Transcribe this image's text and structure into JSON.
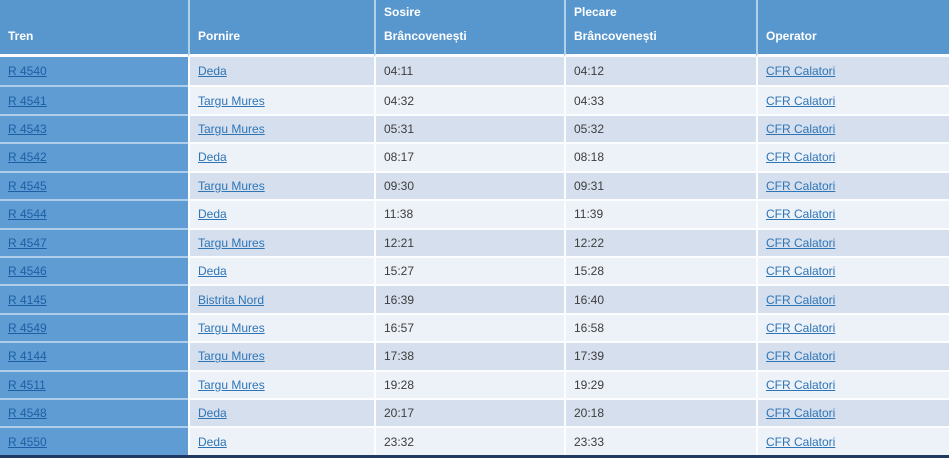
{
  "colors": {
    "header_bg": "#5897CE",
    "first_col_bg": "#5F9CD3",
    "row_odd_bg": "#D5DFEE",
    "row_even_bg": "#EDF1F8",
    "link_color": "#2E75B6",
    "first_col_link_color": "#1D5FA5",
    "time_text_color": "#3D3D3D",
    "bottom_border_color": "#1F3864",
    "header_text_color": "#FFFFFF"
  },
  "table": {
    "headers": [
      {
        "id": "tren",
        "lines": [
          "Tren"
        ]
      },
      {
        "id": "pornire",
        "lines": [
          "Pornire"
        ]
      },
      {
        "id": "sosire",
        "lines": [
          "Sosire",
          "Brâncovenești"
        ]
      },
      {
        "id": "plecare",
        "lines": [
          "Plecare",
          "Brâncovenești"
        ]
      },
      {
        "id": "operator",
        "lines": [
          "Operator"
        ]
      }
    ],
    "rows": [
      {
        "tren": "R 4540",
        "pornire": "Deda",
        "sosire": "04:11",
        "plecare": "04:12",
        "operator": "CFR Calatori"
      },
      {
        "tren": "R 4541",
        "pornire": "Targu Mures",
        "sosire": "04:32",
        "plecare": "04:33",
        "operator": "CFR Calatori"
      },
      {
        "tren": "R 4543",
        "pornire": "Targu Mures",
        "sosire": "05:31",
        "plecare": "05:32",
        "operator": "CFR Calatori"
      },
      {
        "tren": "R 4542",
        "pornire": "Deda",
        "sosire": "08:17",
        "plecare": "08:18",
        "operator": "CFR Calatori"
      },
      {
        "tren": "R 4545",
        "pornire": "Targu Mures",
        "sosire": "09:30",
        "plecare": "09:31",
        "operator": "CFR Calatori"
      },
      {
        "tren": "R 4544",
        "pornire": "Deda",
        "sosire": "11:38",
        "plecare": "11:39",
        "operator": "CFR Calatori"
      },
      {
        "tren": "R 4547",
        "pornire": "Targu Mures",
        "sosire": "12:21",
        "plecare": "12:22",
        "operator": "CFR Calatori"
      },
      {
        "tren": "R 4546",
        "pornire": "Deda",
        "sosire": "15:27",
        "plecare": "15:28",
        "operator": "CFR Calatori"
      },
      {
        "tren": "R 4145",
        "pornire": "Bistrita Nord",
        "sosire": "16:39",
        "plecare": "16:40",
        "operator": "CFR Calatori"
      },
      {
        "tren": "R 4549",
        "pornire": "Targu Mures",
        "sosire": "16:57",
        "plecare": "16:58",
        "operator": "CFR Calatori"
      },
      {
        "tren": "R 4144",
        "pornire": "Targu Mures",
        "sosire": "17:38",
        "plecare": "17:39",
        "operator": "CFR Calatori"
      },
      {
        "tren": "R 4511",
        "pornire": "Targu Mures",
        "sosire": "19:28",
        "plecare": "19:29",
        "operator": "CFR Calatori"
      },
      {
        "tren": "R 4548",
        "pornire": "Deda",
        "sosire": "20:17",
        "plecare": "20:18",
        "operator": "CFR Calatori"
      },
      {
        "tren": "R 4550",
        "pornire": "Deda",
        "sosire": "23:32",
        "plecare": "23:33",
        "operator": "CFR Calatori"
      }
    ]
  }
}
